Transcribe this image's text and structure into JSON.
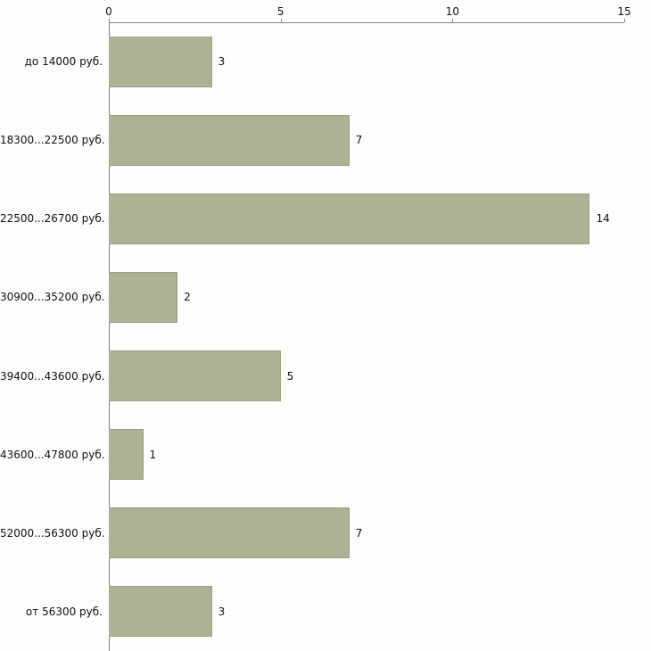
{
  "chart_data": {
    "type": "bar",
    "orientation": "horizontal",
    "title": "",
    "xlabel": "",
    "ylabel": "",
    "categories": [
      "до 14000 руб.",
      "18300...22500 руб.",
      "22500...26700 руб.",
      "30900...35200 руб.",
      "39400...43600 руб.",
      "43600...47800 руб.",
      "52000...56300 руб.",
      "от 56300 руб."
    ],
    "values": [
      3,
      7,
      14,
      2,
      5,
      1,
      7,
      3
    ],
    "xlim": [
      0,
      15
    ],
    "xticks": [
      0,
      5,
      10,
      15
    ],
    "axis_position": "top",
    "grid": "off",
    "legend": "none",
    "bar_color": "#aeb295",
    "axis_color": "#848484",
    "background_color": "#fdfdfd"
  }
}
